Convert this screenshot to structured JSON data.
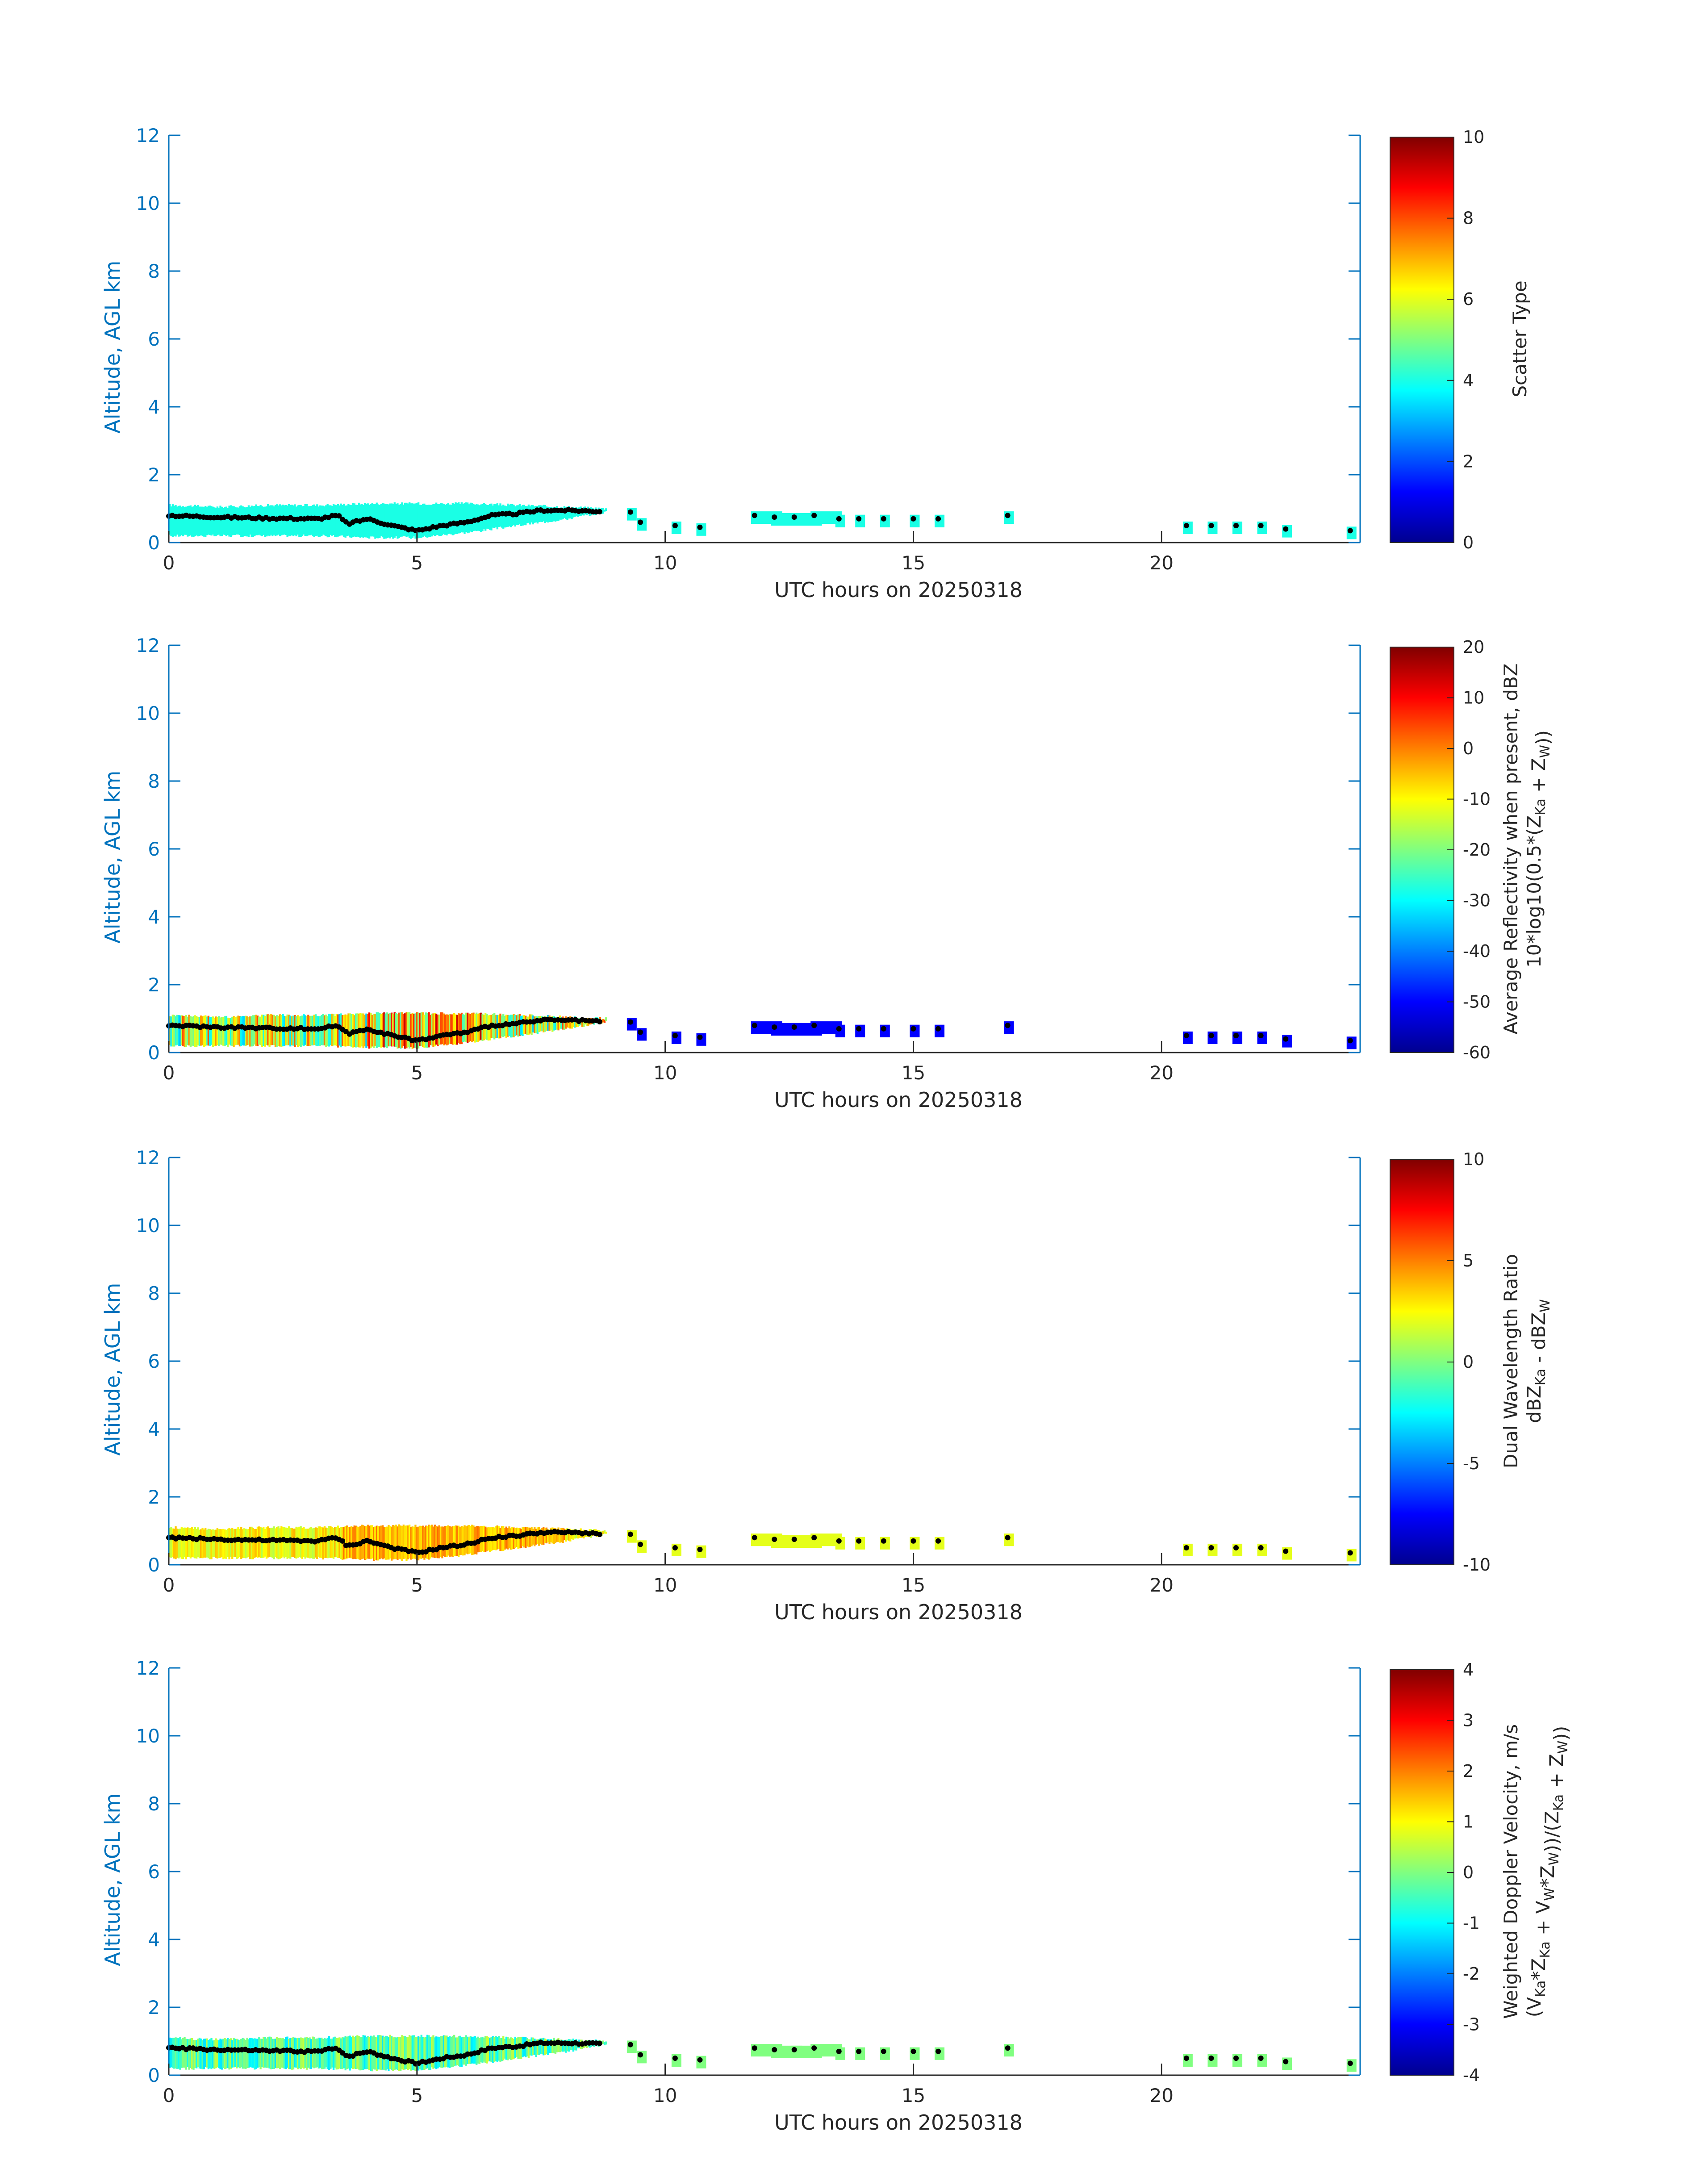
{
  "chart_data": [
    {
      "type": "heatmap",
      "xlabel": "UTC hours on 20250318",
      "ylabel": "Altitude, AGL km",
      "xlim": [
        0,
        24
      ],
      "ylim": [
        0,
        12
      ],
      "xticks": [
        0,
        5,
        10,
        15,
        20
      ],
      "yticks": [
        0,
        2,
        4,
        6,
        8,
        10,
        12
      ],
      "colorbar": {
        "label_line1": "Scatter Type",
        "label_line2": "",
        "clim": [
          0,
          10
        ],
        "ticks": [
          0,
          2,
          4,
          6,
          8,
          10
        ],
        "colormap": "jet"
      },
      "dominant_value": 4,
      "cloud_top_km": [
        [
          0,
          1.1
        ],
        [
          1,
          1.05
        ],
        [
          2,
          1.1
        ],
        [
          3,
          1.1
        ],
        [
          4,
          1.15
        ],
        [
          5,
          1.15
        ],
        [
          6,
          1.15
        ],
        [
          7,
          1.1
        ],
        [
          8,
          1.05
        ],
        [
          8.8,
          1.0
        ]
      ],
      "cloud_base_km": [
        [
          0,
          0.2
        ],
        [
          1,
          0.2
        ],
        [
          2,
          0.2
        ],
        [
          3,
          0.2
        ],
        [
          4,
          0.15
        ],
        [
          5,
          0.15
        ],
        [
          6,
          0.3
        ],
        [
          7,
          0.5
        ],
        [
          8,
          0.7
        ],
        [
          8.8,
          0.9
        ]
      ],
      "cloud_base_height_km": [
        [
          0,
          0.8
        ],
        [
          1,
          0.75
        ],
        [
          2,
          0.72
        ],
        [
          3,
          0.7
        ],
        [
          3.4,
          0.8
        ],
        [
          3.6,
          0.55
        ],
        [
          4,
          0.7
        ],
        [
          4.5,
          0.5
        ],
        [
          5,
          0.35
        ],
        [
          5.5,
          0.5
        ],
        [
          6,
          0.6
        ],
        [
          6.5,
          0.8
        ],
        [
          7,
          0.85
        ],
        [
          7.5,
          0.95
        ],
        [
          8,
          0.95
        ],
        [
          8.7,
          0.92
        ]
      ],
      "isolated_echoes": [
        [
          9.3,
          0.9
        ],
        [
          9.5,
          0.6
        ],
        [
          10.2,
          0.5
        ],
        [
          10.7,
          0.45
        ],
        [
          11.8,
          0.8
        ],
        [
          12.2,
          0.75
        ],
        [
          12.6,
          0.75
        ],
        [
          13.0,
          0.8
        ],
        [
          13.5,
          0.7
        ],
        [
          13.9,
          0.7
        ],
        [
          14.4,
          0.7
        ],
        [
          15.0,
          0.7
        ],
        [
          15.5,
          0.7
        ],
        [
          16.9,
          0.8
        ],
        [
          20.5,
          0.5
        ],
        [
          21.0,
          0.5
        ],
        [
          21.5,
          0.5
        ],
        [
          22.0,
          0.5
        ],
        [
          22.5,
          0.4
        ],
        [
          23.8,
          0.35
        ]
      ]
    },
    {
      "type": "heatmap",
      "xlabel": "UTC hours on 20250318",
      "ylabel": "Altitude, AGL km",
      "xlim": [
        0,
        24
      ],
      "ylim": [
        0,
        12
      ],
      "xticks": [
        0,
        5,
        10,
        15,
        20
      ],
      "yticks": [
        0,
        2,
        4,
        6,
        8,
        10,
        12
      ],
      "colorbar": {
        "label_line1": "Average Reflectivity when present, dBZ",
        "label_line2": "10*log10(0.5*(Z_Ka + Z_W))",
        "clim": [
          -60,
          20
        ],
        "ticks": [
          -60,
          -50,
          -40,
          -30,
          -20,
          -10,
          0,
          10,
          20
        ],
        "colormap": "jet"
      },
      "dominant_value": -20
    },
    {
      "type": "heatmap",
      "xlabel": "UTC hours on 20250318",
      "ylabel": "Altitude, AGL km",
      "xlim": [
        0,
        24
      ],
      "ylim": [
        0,
        12
      ],
      "xticks": [
        0,
        5,
        10,
        15,
        20
      ],
      "yticks": [
        0,
        2,
        4,
        6,
        8,
        10,
        12
      ],
      "colorbar": {
        "label_line1": "Dual Wavelength Ratio",
        "label_line2": "dBZ_Ka - dBZ_W",
        "clim": [
          -10,
          10
        ],
        "ticks": [
          -10,
          -5,
          0,
          5,
          10
        ],
        "colormap": "jet"
      },
      "dominant_value": 2
    },
    {
      "type": "heatmap",
      "xlabel": "UTC hours on 20250318",
      "ylabel": "Altitude, AGL km",
      "xlim": [
        0,
        24
      ],
      "ylim": [
        0,
        12
      ],
      "xticks": [
        0,
        5,
        10,
        15,
        20
      ],
      "yticks": [
        0,
        2,
        4,
        6,
        8,
        10,
        12
      ],
      "colorbar": {
        "label_line1": "Weighted Doppler Velocity, m/s",
        "label_line2": "(V_Ka*Z_Ka + V_W*Z_W))/(Z_Ka + Z_W))",
        "clim": [
          -4,
          4
        ],
        "ticks": [
          -4,
          -3,
          -2,
          -1,
          0,
          1,
          2,
          3,
          4
        ],
        "colormap": "jet"
      },
      "dominant_value": 0
    }
  ]
}
